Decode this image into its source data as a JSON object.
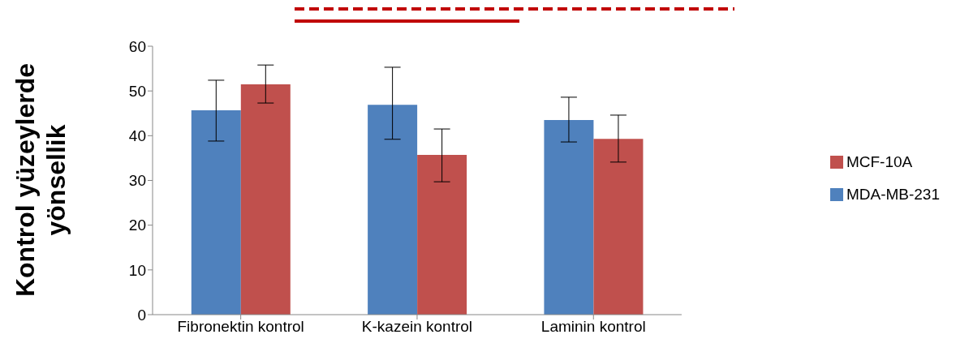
{
  "chart_data": {
    "type": "bar",
    "ylabel": "Kontrol yüzeylerde yönsellik",
    "categories": [
      "Fibronektin kontrol",
      "K-kazein kontrol",
      "Laminin kontrol"
    ],
    "series": [
      {
        "name": "MDA-MB-231",
        "color": "#4f81bd",
        "values": [
          45.7,
          46.9,
          43.5
        ],
        "errors": [
          [
            38.8,
            52.4
          ],
          [
            39.2,
            55.3
          ],
          [
            38.6,
            48.6
          ]
        ]
      },
      {
        "name": "MCF-10A",
        "color": "#c0504d",
        "values": [
          51.5,
          35.7,
          39.3
        ],
        "errors": [
          [
            47.3,
            55.8
          ],
          [
            29.7,
            41.5
          ],
          [
            34.1,
            44.6
          ]
        ]
      }
    ],
    "ylim": [
      0,
      60
    ],
    "yticks": [
      0,
      10,
      20,
      30,
      40,
      50,
      60
    ],
    "grid": false,
    "legend": "right"
  }
}
